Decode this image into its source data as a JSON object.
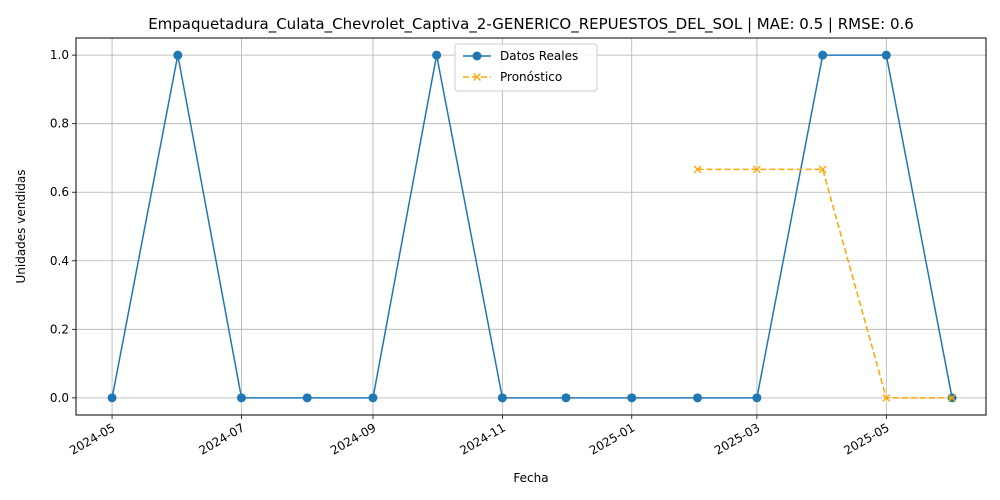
{
  "chart_data": {
    "type": "line",
    "title": "Empaquetadura_Culata_Chevrolet_Captiva_2-GENERICO_REPUESTOS_DEL_SOL | MAE: 0.5 | RMSE: 0.6",
    "xlabel": "Fecha",
    "ylabel": "Unidades vendidas",
    "xlim": [
      "2024-04-14",
      "2025-06-17"
    ],
    "ylim": [
      -0.05,
      1.05
    ],
    "x_ticks": [
      "2024-05",
      "2024-07",
      "2024-09",
      "2024-11",
      "2025-01",
      "2025-03",
      "2025-05"
    ],
    "x_tick_dates": [
      "2024-05-01",
      "2024-07-01",
      "2024-09-01",
      "2024-11-01",
      "2025-01-01",
      "2025-03-01",
      "2025-05-01"
    ],
    "y_ticks": [
      "0.0",
      "0.2",
      "0.4",
      "0.6",
      "0.8",
      "1.0"
    ],
    "y_tick_values": [
      0.0,
      0.2,
      0.4,
      0.6,
      0.8,
      1.0
    ],
    "grid": true,
    "legend_position": "top-center",
    "series": [
      {
        "name": "Datos Reales",
        "color": "#1f77b4",
        "style": "solid",
        "marker": "circle",
        "x": [
          "2024-05-01",
          "2024-06-01",
          "2024-07-01",
          "2024-08-01",
          "2024-09-01",
          "2024-10-01",
          "2024-11-01",
          "2024-12-01",
          "2025-01-01",
          "2025-02-01",
          "2025-03-01",
          "2025-04-01",
          "2025-05-01",
          "2025-06-01"
        ],
        "y": [
          0,
          1,
          0,
          0,
          0,
          1,
          0,
          0,
          0,
          0,
          0,
          1,
          1,
          0
        ]
      },
      {
        "name": "Pronóstico",
        "color": "#ffa500",
        "style": "dashed",
        "marker": "x",
        "x": [
          "2025-02-01",
          "2025-03-01",
          "2025-04-01",
          "2025-05-01",
          "2025-06-01"
        ],
        "y": [
          0.6667,
          0.6667,
          0.6667,
          0,
          0
        ]
      }
    ]
  }
}
